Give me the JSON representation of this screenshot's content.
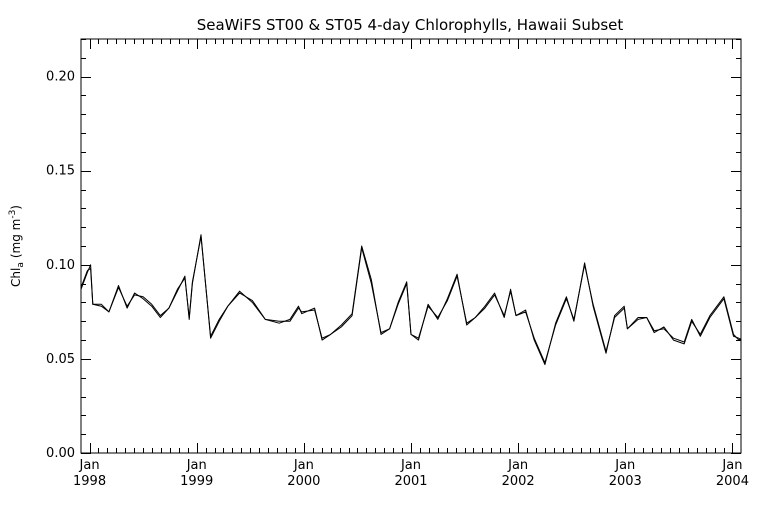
{
  "chart_data": {
    "type": "line",
    "title": "SeaWiFS ST00 & ST05 4-day Chlorophylls, Hawaii Subset",
    "ylabel_main": "Chl",
    "ylabel_sub": "a",
    "ylabel_unit": "(mg m",
    "ylabel_exp": "-3",
    "ylabel_close": ")",
    "ylim": [
      0.0,
      0.22
    ],
    "yticks": [
      "0.00",
      "0.05",
      "0.10",
      "0.15",
      "0.20"
    ],
    "xlim": [
      1997.92,
      2004.08
    ],
    "xticks": [
      {
        "x": 1998.0,
        "month": "Jan",
        "year": "1998"
      },
      {
        "x": 1999.0,
        "month": "Jan",
        "year": "1999"
      },
      {
        "x": 2000.0,
        "month": "Jan",
        "year": "2000"
      },
      {
        "x": 2001.0,
        "month": "Jan",
        "year": "2001"
      },
      {
        "x": 2002.0,
        "month": "Jan",
        "year": "2002"
      },
      {
        "x": 2003.0,
        "month": "Jan",
        "year": "2003"
      },
      {
        "x": 2004.0,
        "month": "Jan",
        "year": "2004"
      }
    ],
    "grid": false,
    "series": [
      {
        "color": "#000000",
        "points": [
          [
            1997.92,
            0.087
          ],
          [
            1997.98,
            0.096
          ],
          [
            1998.01,
            0.1
          ],
          [
            1998.03,
            0.079
          ],
          [
            1998.11,
            0.078
          ],
          [
            1998.18,
            0.075
          ],
          [
            1998.27,
            0.089
          ],
          [
            1998.35,
            0.077
          ],
          [
            1998.42,
            0.085
          ],
          [
            1998.5,
            0.082
          ],
          [
            1998.58,
            0.078
          ],
          [
            1998.66,
            0.072
          ],
          [
            1998.74,
            0.077
          ],
          [
            1998.82,
            0.086
          ],
          [
            1998.89,
            0.094
          ],
          [
            1998.93,
            0.071
          ],
          [
            1998.96,
            0.09
          ],
          [
            1999.04,
            0.116
          ],
          [
            1999.13,
            0.061
          ],
          [
            1999.21,
            0.07
          ],
          [
            1999.29,
            0.078
          ],
          [
            1999.4,
            0.086
          ],
          [
            1999.52,
            0.08
          ],
          [
            1999.64,
            0.071
          ],
          [
            1999.77,
            0.069
          ],
          [
            1999.87,
            0.071
          ],
          [
            1999.95,
            0.078
          ],
          [
            1999.98,
            0.074
          ],
          [
            2000.1,
            0.077
          ],
          [
            2000.17,
            0.06
          ],
          [
            2000.25,
            0.063
          ],
          [
            2000.35,
            0.068
          ],
          [
            2000.45,
            0.074
          ],
          [
            2000.54,
            0.11
          ],
          [
            2000.63,
            0.092
          ],
          [
            2000.72,
            0.063
          ],
          [
            2000.8,
            0.066
          ],
          [
            2000.88,
            0.08
          ],
          [
            2000.96,
            0.091
          ],
          [
            2001.0,
            0.063
          ],
          [
            2001.07,
            0.06
          ],
          [
            2001.16,
            0.079
          ],
          [
            2001.25,
            0.071
          ],
          [
            2001.34,
            0.082
          ],
          [
            2001.43,
            0.095
          ],
          [
            2001.52,
            0.068
          ],
          [
            2001.6,
            0.072
          ],
          [
            2001.69,
            0.078
          ],
          [
            2001.78,
            0.085
          ],
          [
            2001.87,
            0.072
          ],
          [
            2001.93,
            0.087
          ],
          [
            2001.98,
            0.073
          ],
          [
            2002.07,
            0.076
          ],
          [
            2002.15,
            0.06
          ],
          [
            2002.25,
            0.047
          ],
          [
            2002.35,
            0.069
          ],
          [
            2002.45,
            0.083
          ],
          [
            2002.52,
            0.07
          ],
          [
            2002.62,
            0.101
          ],
          [
            2002.7,
            0.078
          ],
          [
            2002.82,
            0.053
          ],
          [
            2002.9,
            0.073
          ],
          [
            2002.99,
            0.078
          ],
          [
            2003.02,
            0.066
          ],
          [
            2003.12,
            0.071
          ],
          [
            2003.2,
            0.072
          ],
          [
            2003.27,
            0.064
          ],
          [
            2003.36,
            0.067
          ],
          [
            2003.45,
            0.06
          ],
          [
            2003.55,
            0.058
          ],
          [
            2003.62,
            0.07
          ],
          [
            2003.7,
            0.063
          ],
          [
            2003.79,
            0.073
          ],
          [
            2003.92,
            0.083
          ],
          [
            2004.01,
            0.063
          ],
          [
            2004.06,
            0.06
          ],
          [
            2004.08,
            0.061
          ]
        ]
      },
      {
        "color": "#000000",
        "points": [
          [
            1997.92,
            0.088
          ],
          [
            1997.98,
            0.097
          ],
          [
            1998.01,
            0.098
          ],
          [
            1998.03,
            0.079
          ],
          [
            1998.11,
            0.079
          ],
          [
            1998.18,
            0.075
          ],
          [
            1998.27,
            0.088
          ],
          [
            1998.35,
            0.078
          ],
          [
            1998.42,
            0.084
          ],
          [
            1998.5,
            0.083
          ],
          [
            1998.58,
            0.079
          ],
          [
            1998.66,
            0.073
          ],
          [
            1998.74,
            0.077
          ],
          [
            1998.82,
            0.087
          ],
          [
            1998.89,
            0.093
          ],
          [
            1998.93,
            0.072
          ],
          [
            1998.96,
            0.091
          ],
          [
            1999.04,
            0.115
          ],
          [
            1999.13,
            0.062
          ],
          [
            1999.21,
            0.071
          ],
          [
            1999.29,
            0.078
          ],
          [
            1999.4,
            0.085
          ],
          [
            1999.52,
            0.081
          ],
          [
            1999.64,
            0.071
          ],
          [
            1999.77,
            0.07
          ],
          [
            1999.87,
            0.07
          ],
          [
            1999.95,
            0.077
          ],
          [
            1999.98,
            0.075
          ],
          [
            2000.1,
            0.076
          ],
          [
            2000.17,
            0.061
          ],
          [
            2000.25,
            0.063
          ],
          [
            2000.35,
            0.067
          ],
          [
            2000.45,
            0.073
          ],
          [
            2000.54,
            0.109
          ],
          [
            2000.63,
            0.09
          ],
          [
            2000.72,
            0.064
          ],
          [
            2000.8,
            0.066
          ],
          [
            2000.88,
            0.079
          ],
          [
            2000.96,
            0.09
          ],
          [
            2001.0,
            0.063
          ],
          [
            2001.07,
            0.061
          ],
          [
            2001.16,
            0.078
          ],
          [
            2001.25,
            0.072
          ],
          [
            2001.34,
            0.081
          ],
          [
            2001.43,
            0.094
          ],
          [
            2001.52,
            0.069
          ],
          [
            2001.6,
            0.072
          ],
          [
            2001.69,
            0.077
          ],
          [
            2001.78,
            0.084
          ],
          [
            2001.87,
            0.073
          ],
          [
            2001.93,
            0.086
          ],
          [
            2001.98,
            0.073
          ],
          [
            2002.07,
            0.075
          ],
          [
            2002.15,
            0.061
          ],
          [
            2002.25,
            0.048
          ],
          [
            2002.35,
            0.068
          ],
          [
            2002.45,
            0.082
          ],
          [
            2002.52,
            0.071
          ],
          [
            2002.62,
            0.1
          ],
          [
            2002.7,
            0.079
          ],
          [
            2002.82,
            0.054
          ],
          [
            2002.9,
            0.072
          ],
          [
            2002.99,
            0.077
          ],
          [
            2003.02,
            0.066
          ],
          [
            2003.12,
            0.072
          ],
          [
            2003.2,
            0.072
          ],
          [
            2003.27,
            0.065
          ],
          [
            2003.36,
            0.066
          ],
          [
            2003.45,
            0.061
          ],
          [
            2003.55,
            0.059
          ],
          [
            2003.62,
            0.071
          ],
          [
            2003.7,
            0.062
          ],
          [
            2003.79,
            0.072
          ],
          [
            2003.92,
            0.082
          ],
          [
            2004.01,
            0.062
          ],
          [
            2004.06,
            0.061
          ],
          [
            2004.08,
            0.06
          ]
        ]
      }
    ]
  }
}
